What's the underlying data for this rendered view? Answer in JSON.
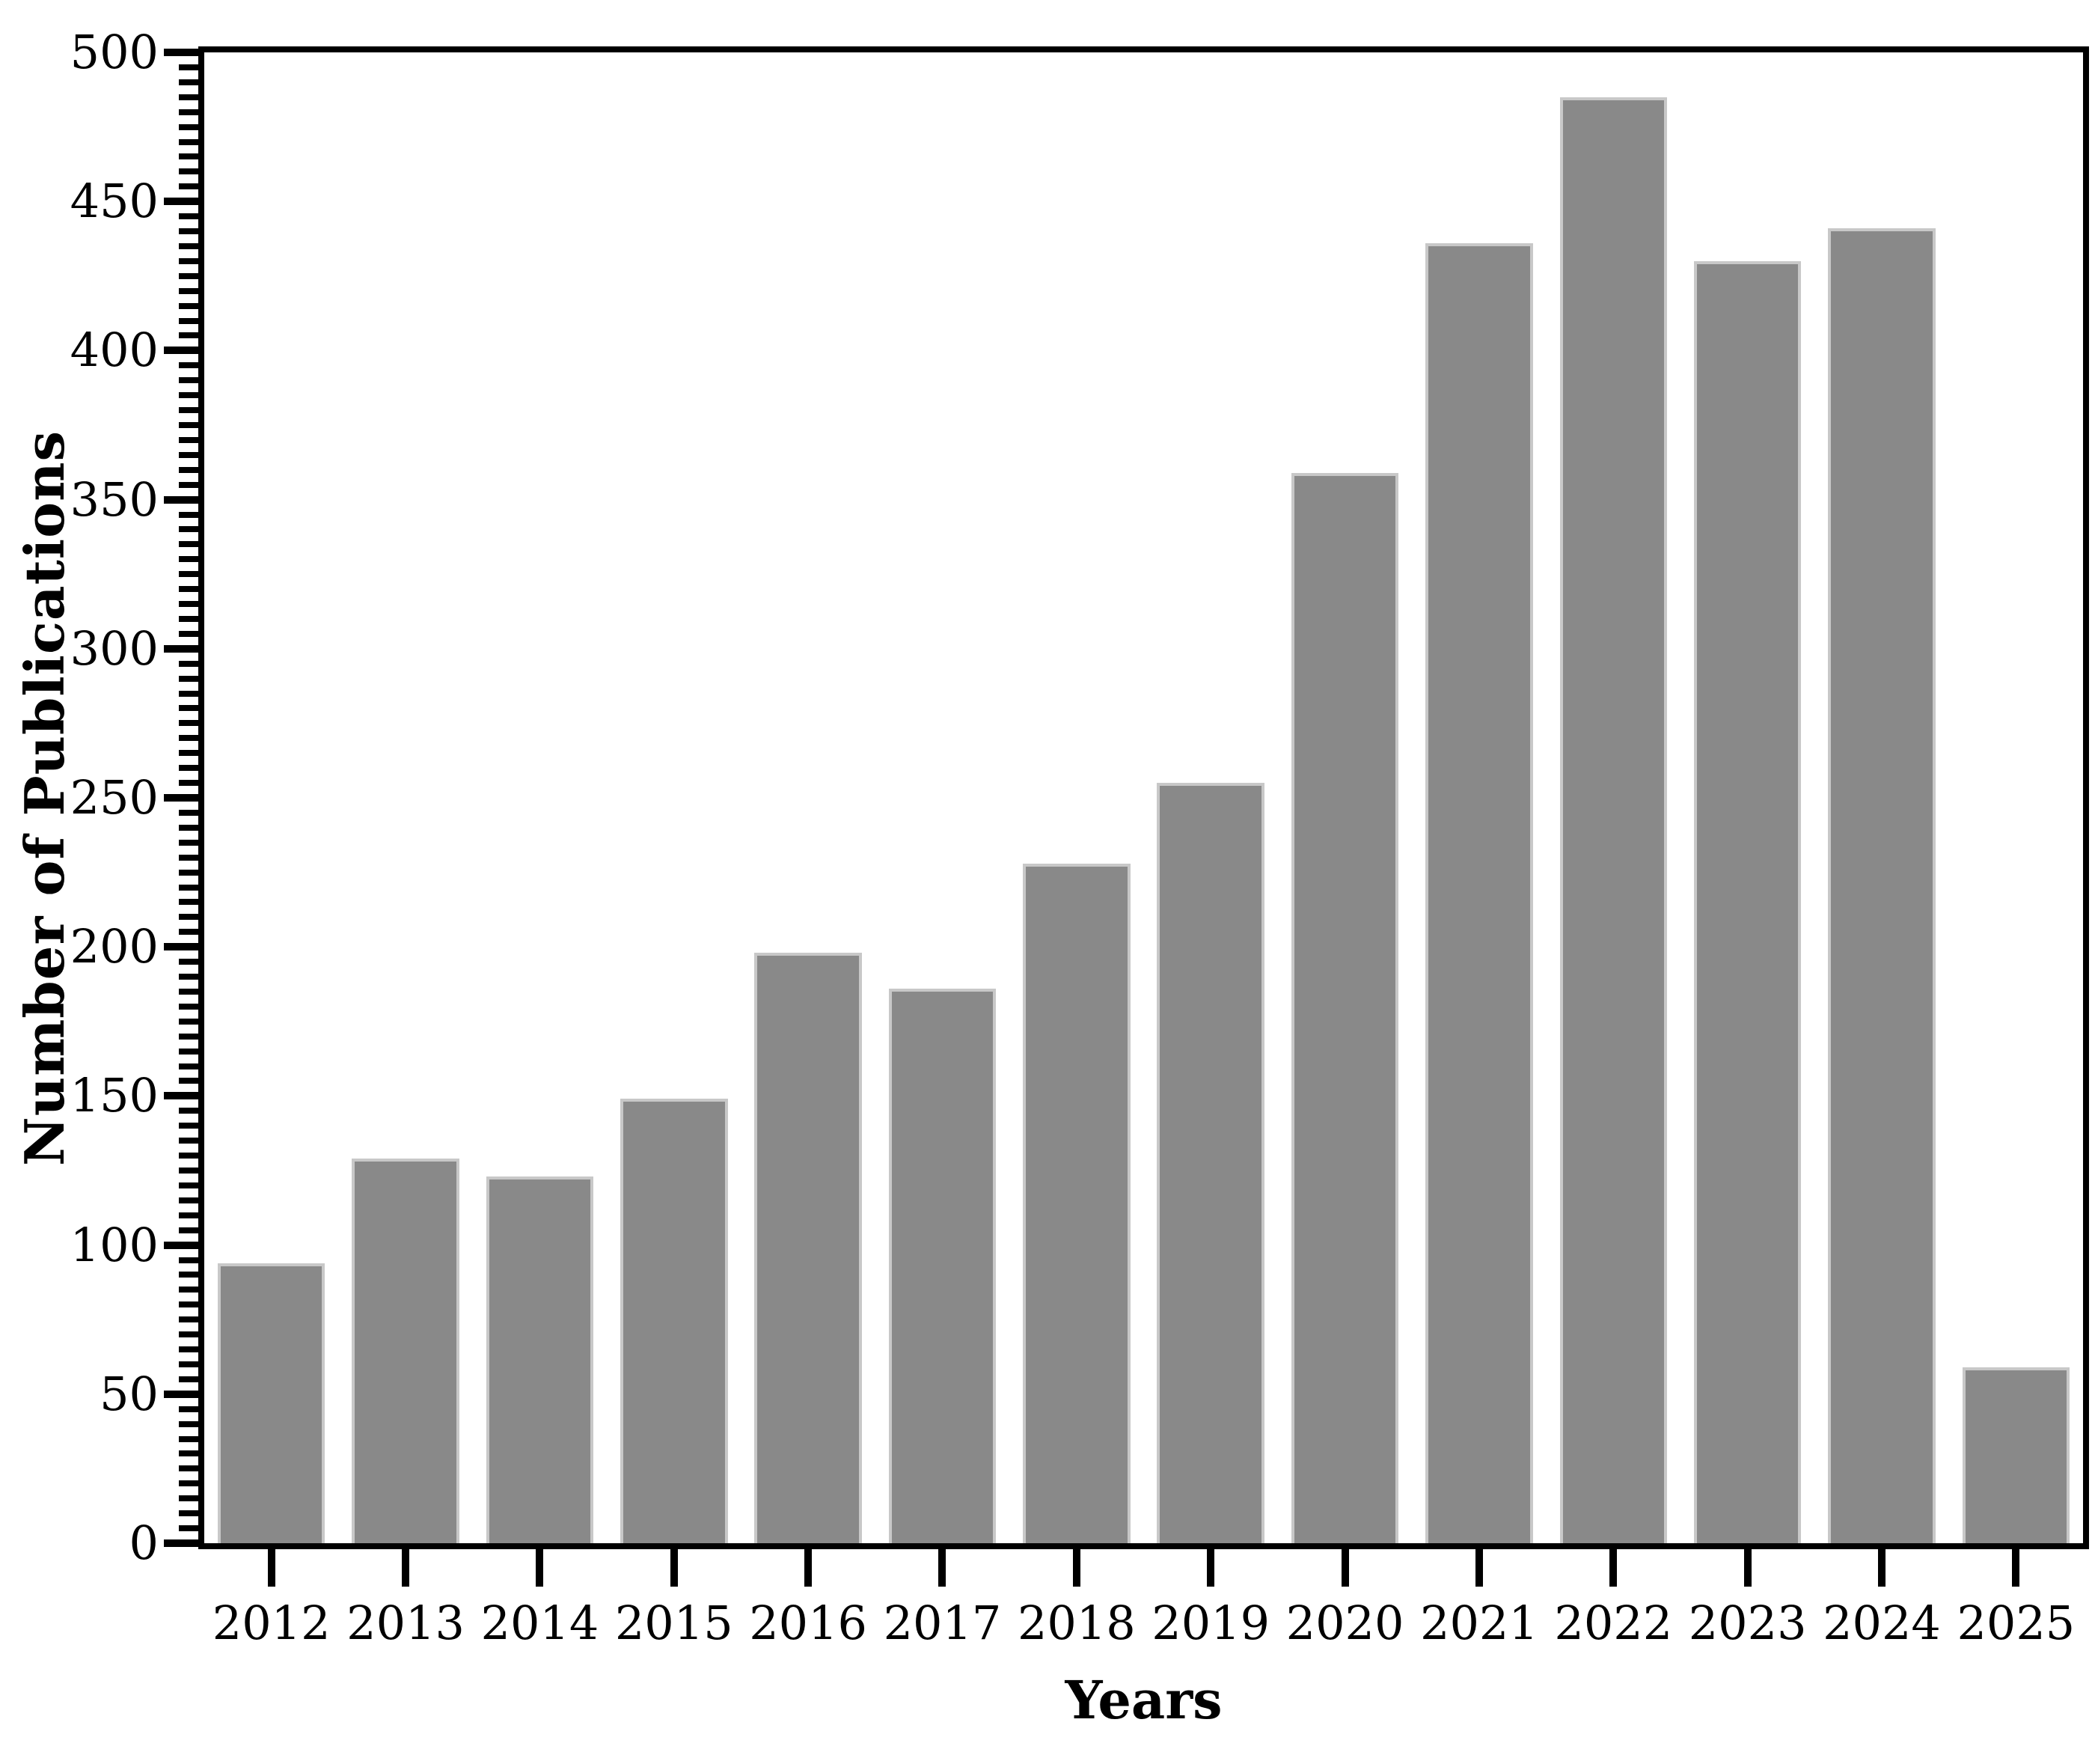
{
  "figure": {
    "background": "#ffffff",
    "axis_color": "#000000",
    "bar_fill": "#898989",
    "bar_border": "#c8c8c8"
  },
  "chart_data": {
    "type": "bar",
    "title": "",
    "xlabel": "Years",
    "ylabel": "Number of Publications",
    "categories": [
      "2012",
      "2013",
      "2014",
      "2015",
      "2016",
      "2017",
      "2018",
      "2019",
      "2020",
      "2021",
      "2022",
      "2023",
      "2024",
      "2025"
    ],
    "values": [
      94,
      129,
      123,
      149,
      198,
      186,
      228,
      255,
      359,
      436,
      485,
      430,
      441,
      59
    ],
    "ylim": [
      0,
      500
    ],
    "y_major_ticks": [
      0,
      50,
      100,
      150,
      200,
      250,
      300,
      350,
      400,
      450,
      500
    ],
    "y_minor_step": 5,
    "grid": "off",
    "legend": "none",
    "frame": "full",
    "bar_color_hex": "#898989",
    "bar_border_hex": "#c8c8c8"
  }
}
